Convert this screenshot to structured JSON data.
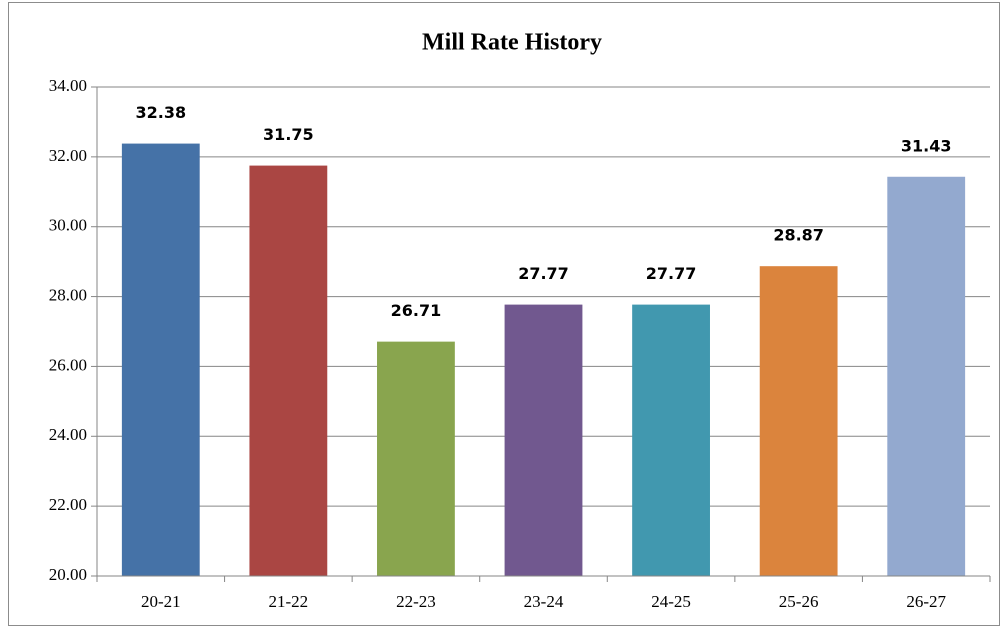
{
  "chart_data": {
    "type": "bar",
    "title": "Mill Rate History",
    "categories": [
      "20-21",
      "21-22",
      "22-23",
      "23-24",
      "24-25",
      "25-26",
      "26-27"
    ],
    "values": [
      32.38,
      31.75,
      26.71,
      27.77,
      27.77,
      28.87,
      31.43
    ],
    "colors": [
      "#4572a7",
      "#aa4643",
      "#89a54e",
      "#71588f",
      "#4198af",
      "#db843d",
      "#93a9cf"
    ],
    "ylim": [
      20,
      34
    ],
    "yticks": [
      {
        "value": 20,
        "label": "20.00"
      },
      {
        "value": 22,
        "label": "22.00"
      },
      {
        "value": 24,
        "label": "24.00"
      },
      {
        "value": 26,
        "label": "26.00"
      },
      {
        "value": 28,
        "label": "28.00"
      },
      {
        "value": 30,
        "label": "30.00"
      },
      {
        "value": 32,
        "label": "32.00"
      },
      {
        "value": 34,
        "label": "34.00"
      }
    ],
    "grid": true
  }
}
